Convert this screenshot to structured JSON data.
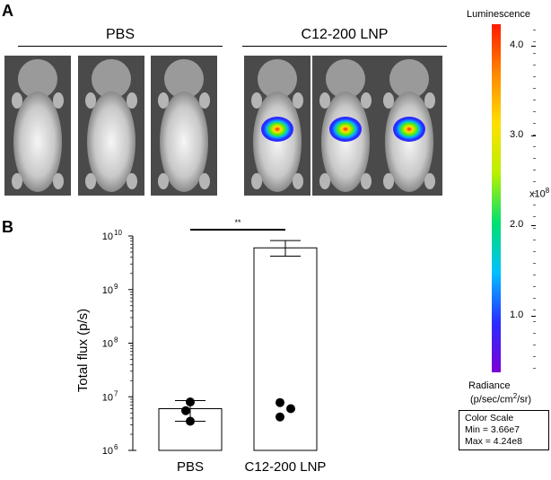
{
  "panel_a": {
    "letter": "A",
    "groups": [
      {
        "label": "PBS",
        "mice": [
          {
            "signal": 0
          },
          {
            "signal": 0
          },
          {
            "signal": 0
          }
        ]
      },
      {
        "label": "C12-200 LNP",
        "mice": [
          {
            "signal": 1
          },
          {
            "signal": 1
          },
          {
            "signal": 1
          }
        ]
      }
    ]
  },
  "colorbar": {
    "title": "Luminescence",
    "ticks": [
      "4.0",
      "3.0",
      "2.0",
      "1.0"
    ],
    "multiplier": "x10",
    "multiplier_exp": "8",
    "radiance_label": "Radiance",
    "radiance_units_pre": "(p/sec/cm",
    "radiance_units_sup": "2",
    "radiance_units_post": "/sr)",
    "scale_box": {
      "title": "Color Scale",
      "min": "Min = 3.66e7",
      "max": "Max = 4.24e8"
    },
    "colors": [
      "#7b00d6",
      "#2a2cff",
      "#00c0ff",
      "#00e070",
      "#b8f000",
      "#ffe000",
      "#ff8800",
      "#ff1a00"
    ]
  },
  "panel_b": {
    "letter": "B",
    "significance": "**"
  },
  "chart_data": {
    "type": "bar",
    "yscale": "log",
    "ylabel": "Total flux (p/s)",
    "ylim": [
      1000000,
      10000000000
    ],
    "ytick_base": "10",
    "ytick_exps": [
      "6",
      "7",
      "8",
      "9",
      "10"
    ],
    "categories": [
      "PBS",
      "C12-200 LNP"
    ],
    "values": [
      6000000,
      6000000000
    ],
    "error_low": [
      3500000,
      4200000000
    ],
    "error_high": [
      8500000,
      8200000000
    ],
    "points": [
      [
        8000000,
        5500000,
        3500000
      ],
      [
        7800000,
        6000000,
        4200000
      ]
    ]
  }
}
